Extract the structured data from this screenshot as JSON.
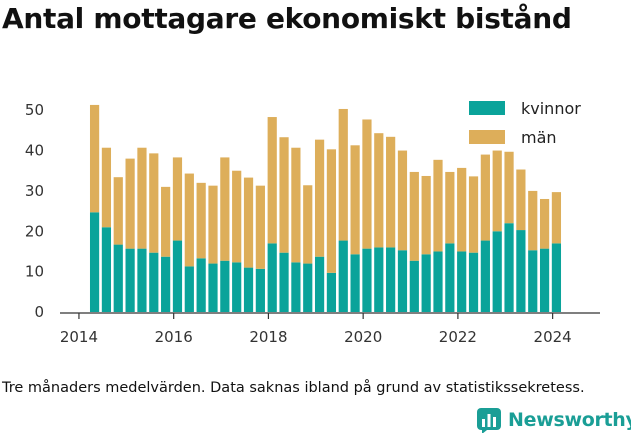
{
  "title": "Antal mottagare ekonomiskt bistånd",
  "caption": "Tre månaders medelvärden. Data saknas ibland på grund av statistikssekretess.",
  "brand": {
    "name": "Newsworthy",
    "icon": "bar-chart-logo-icon"
  },
  "colors": {
    "kvinnor": "#0aa39a",
    "man": "#ddae5a",
    "axis": "#333333",
    "grid": "#dddddd"
  },
  "chart_data": {
    "type": "bar",
    "stacked": true,
    "title": "Antal mottagare ekonomiskt bistånd",
    "xlabel": "",
    "ylabel": "",
    "xlim": [
      2013.6,
      2025.0
    ],
    "ylim": [
      0,
      55
    ],
    "yticks": [
      0,
      10,
      20,
      30,
      40,
      50
    ],
    "xticks": [
      2014,
      2016,
      2018,
      2020,
      2022,
      2024
    ],
    "legend": "top-right",
    "grid": false,
    "x": [
      2014.33,
      2014.58,
      2014.83,
      2015.08,
      2015.33,
      2015.58,
      2015.83,
      2016.08,
      2016.33,
      2016.58,
      2016.83,
      2017.08,
      2017.33,
      2017.58,
      2017.83,
      2018.08,
      2018.33,
      2018.58,
      2018.83,
      2019.08,
      2019.33,
      2019.58,
      2019.83,
      2020.08,
      2020.33,
      2020.58,
      2020.83,
      2021.08,
      2021.33,
      2021.58,
      2021.83,
      2022.08,
      2022.33,
      2022.58,
      2022.83,
      2023.08,
      2023.33,
      2023.58,
      2023.83,
      2024.08
    ],
    "series": [
      {
        "name": "kvinnor",
        "values": [
          24.7,
          21.0,
          16.7,
          15.7,
          15.7,
          14.7,
          13.7,
          17.7,
          11.3,
          13.3,
          12.0,
          12.7,
          12.3,
          11.0,
          10.7,
          17.0,
          14.7,
          12.3,
          12.0,
          13.7,
          9.7,
          17.7,
          14.3,
          15.7,
          16.0,
          16.0,
          15.3,
          12.7,
          14.3,
          15.0,
          17.0,
          15.0,
          14.7,
          17.7,
          20.0,
          22.0,
          20.3,
          15.3,
          15.7,
          17.0
        ]
      },
      {
        "name": "män",
        "values": [
          26.6,
          19.7,
          16.7,
          22.3,
          25.0,
          24.6,
          17.3,
          20.6,
          23.0,
          18.7,
          19.3,
          25.6,
          22.7,
          22.3,
          20.6,
          31.3,
          28.6,
          28.4,
          19.4,
          29.0,
          30.6,
          32.6,
          27.0,
          32.0,
          28.3,
          27.4,
          24.7,
          22.0,
          19.4,
          22.7,
          17.7,
          20.7,
          18.9,
          21.3,
          20.0,
          17.7,
          15.0,
          14.7,
          12.3,
          12.7
        ]
      }
    ]
  }
}
